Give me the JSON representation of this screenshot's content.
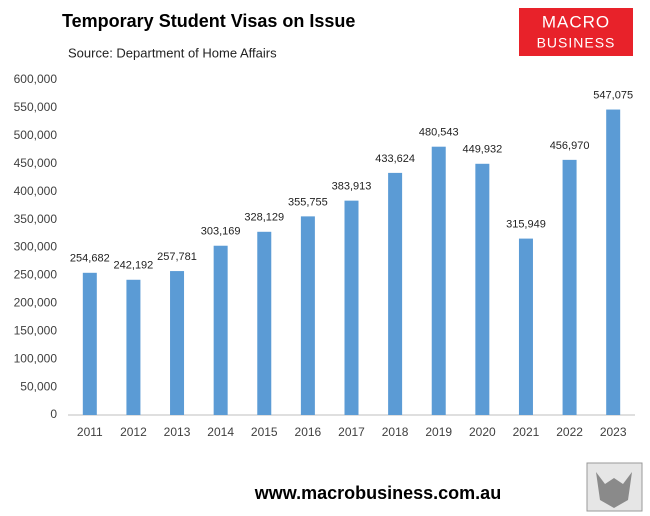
{
  "chart_data": {
    "type": "bar",
    "title": "Temporary Student Visas on Issue",
    "subtitle": "Source: Department of Home Affairs",
    "logo": [
      "MACRO",
      "BUSINESS"
    ],
    "footer": "www.macrobusiness.com.au",
    "categories": [
      "2011",
      "2012",
      "2013",
      "2014",
      "2015",
      "2016",
      "2017",
      "2018",
      "2019",
      "2020",
      "2021",
      "2022",
      "2023"
    ],
    "values": [
      254682,
      242192,
      257781,
      303169,
      328129,
      355755,
      383913,
      433624,
      480543,
      449932,
      315949,
      456970,
      547075
    ],
    "value_labels": [
      "254,682",
      "242,192",
      "257,781",
      "303,169",
      "328,129",
      "355,755",
      "383,913",
      "433,624",
      "480,543",
      "449,932",
      "315,949",
      "456,970",
      "547,075"
    ],
    "color": "#5b9bd5",
    "ylim": [
      0,
      600000
    ],
    "yticks": [
      0,
      {
        "value": 50000,
        "label": "50,000"
      },
      {
        "value": 100000,
        "label": "100,000"
      },
      {
        "value": 150000,
        "label": "150,000"
      },
      {
        "value": 200000,
        "label": "200,000"
      },
      {
        "value": 250000,
        "label": "250,000"
      },
      {
        "value": 300000,
        "label": "300,000"
      },
      {
        "value": 350000,
        "label": "350,000"
      },
      {
        "value": 400000,
        "label": "400,000"
      },
      {
        "value": 450000,
        "label": "450,000"
      },
      {
        "value": 500000,
        "label": "500,000"
      },
      {
        "value": 550000,
        "label": "550,000"
      },
      {
        "value": 600000,
        "label": "600,000"
      }
    ],
    "grid": false
  }
}
